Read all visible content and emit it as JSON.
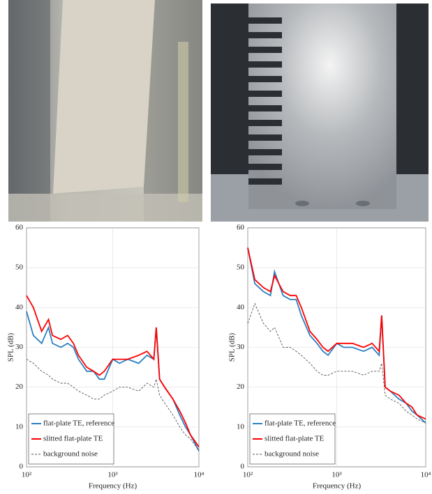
{
  "chart_data": [
    {
      "type": "line",
      "xlabel": "Frequency (Hz)",
      "ylabel": "SPL (dB)",
      "xscale": "log",
      "xlim": [
        100,
        10000
      ],
      "ylim": [
        0,
        60
      ],
      "xticks": [
        {
          "value": 100,
          "label": "10²"
        },
        {
          "value": 1000,
          "label": "10³"
        },
        {
          "value": 10000,
          "label": "10⁴"
        }
      ],
      "yticks": [
        0,
        10,
        20,
        30,
        40,
        50,
        60
      ],
      "grid": true,
      "legend": "lower left",
      "x": [
        100,
        120,
        150,
        180,
        200,
        250,
        300,
        350,
        400,
        500,
        600,
        700,
        800,
        1000,
        1200,
        1500,
        2000,
        2500,
        3000,
        3200,
        3500,
        4000,
        5000,
        6000,
        7000,
        8000,
        10000
      ],
      "series": [
        {
          "name": "flat-plate TE, reference",
          "color": "#2a7fc1",
          "linestyle": "solid",
          "values": [
            39,
            33,
            31,
            35,
            31,
            30,
            31,
            30,
            27,
            24,
            24,
            22,
            22,
            27,
            26,
            27,
            26,
            28,
            27,
            35,
            22,
            20,
            17,
            13,
            10,
            8,
            4
          ]
        },
        {
          "name": "slitted flat-plate TE",
          "color": "#ff0000",
          "linestyle": "solid",
          "values": [
            43,
            40,
            34,
            37,
            33,
            32,
            33,
            31,
            28,
            25,
            24,
            23,
            24,
            27,
            27,
            27,
            28,
            29,
            27,
            35,
            22,
            20,
            17,
            14,
            11,
            8,
            5
          ]
        },
        {
          "name": "background noise",
          "color": "#555555",
          "linestyle": "dashed",
          "values": [
            27,
            26,
            24,
            23,
            22,
            21,
            21,
            20,
            19,
            18,
            17,
            17,
            18,
            19,
            20,
            20,
            19,
            21,
            20,
            22,
            18,
            16,
            13,
            10,
            8,
            7,
            4
          ]
        }
      ]
    },
    {
      "type": "line",
      "xlabel": "Frequency (Hz)",
      "ylabel": "SPL (dB)",
      "xscale": "log",
      "xlim": [
        100,
        10000
      ],
      "ylim": [
        0,
        60
      ],
      "xticks": [
        {
          "value": 100,
          "label": "10²"
        },
        {
          "value": 1000,
          "label": "10³"
        },
        {
          "value": 10000,
          "label": "10⁴"
        }
      ],
      "yticks": [
        0,
        10,
        20,
        30,
        40,
        50,
        60
      ],
      "grid": true,
      "legend": "lower left",
      "x": [
        100,
        120,
        150,
        180,
        200,
        250,
        300,
        350,
        400,
        500,
        600,
        700,
        800,
        1000,
        1200,
        1500,
        2000,
        2500,
        3000,
        3200,
        3500,
        4000,
        5000,
        6000,
        7000,
        8000,
        10000
      ],
      "series": [
        {
          "name": "flat-plate TE, reference",
          "color": "#2a7fc1",
          "linestyle": "solid",
          "values": [
            55,
            46,
            44,
            43,
            49,
            43,
            42,
            42,
            38,
            33,
            31,
            29,
            28,
            31,
            30,
            30,
            29,
            30,
            28,
            38,
            20,
            19,
            17,
            16,
            14,
            13,
            11
          ]
        },
        {
          "name": "slitted flat-plate TE",
          "color": "#ff0000",
          "linestyle": "solid",
          "values": [
            55,
            47,
            45,
            44,
            48,
            44,
            43,
            43,
            40,
            34,
            32,
            30,
            29,
            31,
            31,
            31,
            30,
            31,
            29,
            38,
            20,
            19,
            18,
            16,
            15,
            13,
            12
          ]
        },
        {
          "name": "background noise",
          "color": "#555555",
          "linestyle": "dashed",
          "values": [
            36,
            41,
            36,
            34,
            35,
            30,
            30,
            29,
            28,
            26,
            24,
            23,
            23,
            24,
            24,
            24,
            23,
            24,
            24,
            26,
            18,
            17,
            16,
            14,
            13,
            12,
            11
          ]
        }
      ]
    }
  ]
}
